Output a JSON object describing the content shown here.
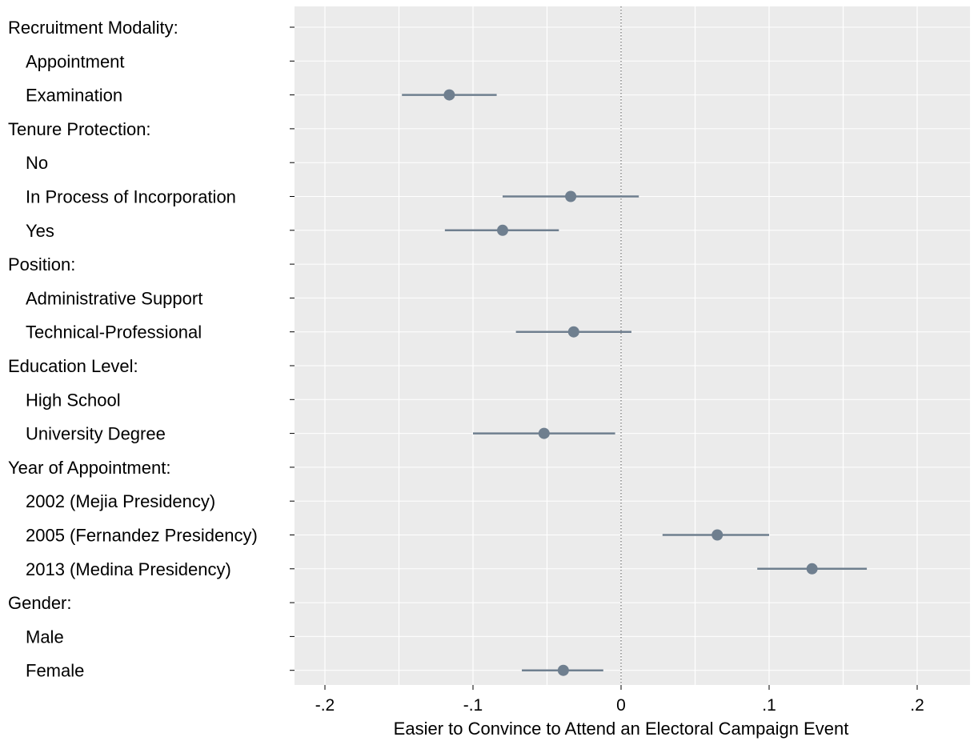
{
  "chart_data": {
    "type": "scatter",
    "subtype": "coefficient-plot",
    "orientation": "horizontal",
    "xlabel": "Easier to Convince to Attend an Electoral Campaign Event",
    "xlim": [
      -0.22,
      0.23
    ],
    "xticks": [
      -0.2,
      -0.1,
      0,
      0.1,
      0.2
    ],
    "xtick_labels": [
      "-.2",
      "-.1",
      "0",
      ".1",
      ".2"
    ],
    "reference_line": 0,
    "grid": true,
    "legend": "none",
    "colors": {
      "panel": "#ebebeb",
      "grid": "#ffffff",
      "marker": "#6f7f8f",
      "text": "#000000",
      "refline": "#555555"
    },
    "rows": [
      {
        "label": "Recruitment Modality:",
        "header": true
      },
      {
        "label": "Appointment",
        "header": false
      },
      {
        "label": "Examination",
        "header": false,
        "estimate": -0.116,
        "ci": [
          -0.148,
          -0.084
        ]
      },
      {
        "label": "Tenure Protection:",
        "header": true
      },
      {
        "label": "No",
        "header": false
      },
      {
        "label": "In Process of Incorporation",
        "header": false,
        "estimate": -0.034,
        "ci": [
          -0.08,
          0.012
        ]
      },
      {
        "label": "Yes",
        "header": false,
        "estimate": -0.08,
        "ci": [
          -0.119,
          -0.042
        ]
      },
      {
        "label": "Position:",
        "header": true
      },
      {
        "label": "Administrative Support",
        "header": false
      },
      {
        "label": "Technical-Professional",
        "header": false,
        "estimate": -0.032,
        "ci": [
          -0.071,
          0.007
        ]
      },
      {
        "label": "Education Level:",
        "header": true
      },
      {
        "label": "High School",
        "header": false
      },
      {
        "label": "University Degree",
        "header": false,
        "estimate": -0.052,
        "ci": [
          -0.1,
          -0.004
        ]
      },
      {
        "label": "Year of Appointment:",
        "header": true
      },
      {
        "label": "2002 (Mejia Presidency)",
        "header": false
      },
      {
        "label": "2005 (Fernandez Presidency)",
        "header": false,
        "estimate": 0.065,
        "ci": [
          0.028,
          0.1
        ]
      },
      {
        "label": "2013 (Medina Presidency)",
        "header": false,
        "estimate": 0.129,
        "ci": [
          0.092,
          0.166
        ]
      },
      {
        "label": "Gender:",
        "header": true
      },
      {
        "label": "Male",
        "header": false
      },
      {
        "label": "Female",
        "header": false,
        "estimate": -0.039,
        "ci": [
          -0.067,
          -0.012
        ]
      }
    ]
  }
}
